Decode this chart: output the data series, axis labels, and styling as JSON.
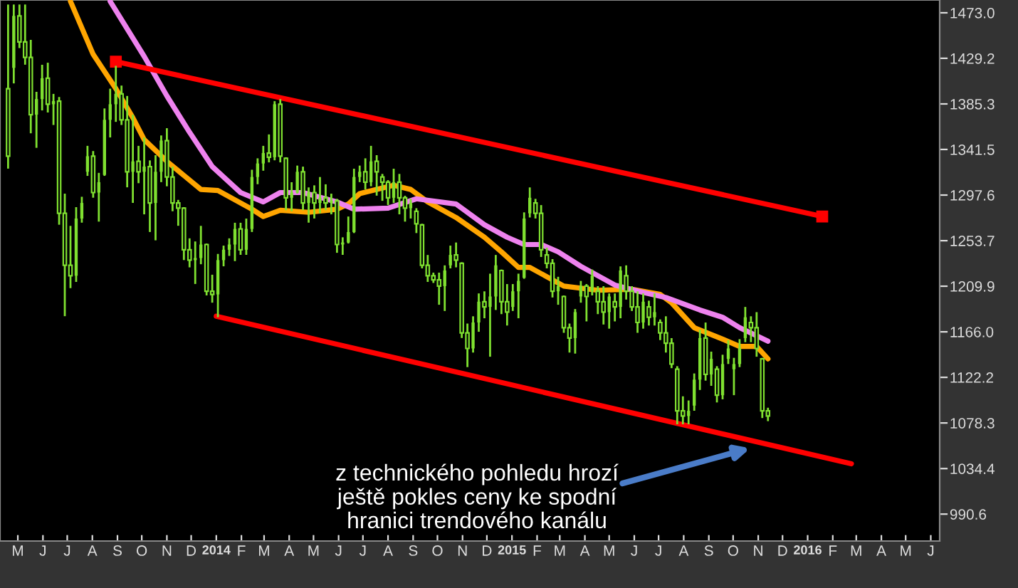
{
  "chart_data": {
    "type": "candlestick",
    "color": "#7fe030",
    "x": [
      "2013-04-19",
      "2013-04-26",
      "2013-05-03",
      "2013-05-10",
      "2013-05-17",
      "2013-05-24",
      "2013-05-31",
      "2013-06-07",
      "2013-06-14",
      "2013-06-21",
      "2013-06-28",
      "2013-07-05",
      "2013-07-12",
      "2013-07-19",
      "2013-07-26",
      "2013-08-02",
      "2013-08-09",
      "2013-08-16",
      "2013-08-23",
      "2013-08-30",
      "2013-09-06",
      "2013-09-13",
      "2013-09-20",
      "2013-09-27",
      "2013-10-04",
      "2013-10-11",
      "2013-10-18",
      "2013-10-25",
      "2013-11-01",
      "2013-11-08",
      "2013-11-15",
      "2013-11-22",
      "2013-11-29",
      "2013-12-06",
      "2013-12-13",
      "2013-12-20",
      "2013-12-27",
      "2014-01-03",
      "2014-01-10",
      "2014-01-17",
      "2014-01-24",
      "2014-01-31",
      "2014-02-07",
      "2014-02-14",
      "2014-02-21",
      "2014-02-28",
      "2014-03-07",
      "2014-03-14",
      "2014-03-21",
      "2014-03-28",
      "2014-04-04",
      "2014-04-11",
      "2014-04-18",
      "2014-04-25",
      "2014-05-02",
      "2014-05-09",
      "2014-05-16",
      "2014-05-23",
      "2014-05-30",
      "2014-06-06",
      "2014-06-13",
      "2014-06-20",
      "2014-06-27",
      "2014-07-04",
      "2014-07-11",
      "2014-07-18",
      "2014-07-25",
      "2014-08-01",
      "2014-08-08",
      "2014-08-15",
      "2014-08-22",
      "2014-08-29",
      "2014-09-05",
      "2014-09-12",
      "2014-09-19",
      "2014-09-26",
      "2014-10-03",
      "2014-10-10",
      "2014-10-17",
      "2014-10-24",
      "2014-10-31",
      "2014-11-07",
      "2014-11-14",
      "2014-11-21",
      "2014-11-28",
      "2014-12-05",
      "2014-12-12",
      "2014-12-19",
      "2014-12-26",
      "2015-01-02",
      "2015-01-09",
      "2015-01-16",
      "2015-01-23",
      "2015-01-30",
      "2015-02-06",
      "2015-02-13",
      "2015-02-20",
      "2015-02-27",
      "2015-03-06",
      "2015-03-13",
      "2015-03-20",
      "2015-03-27",
      "2015-04-03",
      "2015-04-10",
      "2015-04-17",
      "2015-04-24",
      "2015-05-01",
      "2015-05-08",
      "2015-05-15",
      "2015-05-22",
      "2015-05-29",
      "2015-06-05",
      "2015-06-12",
      "2015-06-19",
      "2015-06-26",
      "2015-07-03",
      "2015-07-10",
      "2015-07-17",
      "2015-07-24",
      "2015-07-31",
      "2015-08-07",
      "2015-08-14",
      "2015-08-21",
      "2015-08-28",
      "2015-09-04",
      "2015-09-11",
      "2015-09-18",
      "2015-09-25",
      "2015-10-02",
      "2015-10-09",
      "2015-10-16",
      "2015-10-23",
      "2015-10-30",
      "2015-11-06",
      "2015-11-13"
    ],
    "ohlc": [
      [
        1400,
        1480,
        1324,
        1335
      ],
      [
        1420,
        1480,
        1406,
        1470
      ],
      [
        1470,
        1480,
        1440,
        1445
      ],
      [
        1445,
        1480,
        1424,
        1430
      ],
      [
        1430,
        1446,
        1358,
        1375
      ],
      [
        1375,
        1396,
        1344,
        1390
      ],
      [
        1390,
        1422,
        1380,
        1410
      ],
      [
        1410,
        1424,
        1378,
        1385
      ],
      [
        1385,
        1394,
        1366,
        1388
      ],
      [
        1388,
        1391,
        1270,
        1280
      ],
      [
        1280,
        1298,
        1182,
        1230
      ],
      [
        1230,
        1267,
        1209,
        1220
      ],
      [
        1220,
        1285,
        1215,
        1275
      ],
      [
        1275,
        1295,
        1272,
        1290
      ],
      [
        1320,
        1344,
        1317,
        1335
      ],
      [
        1335,
        1339,
        1296,
        1300
      ],
      [
        1300,
        1318,
        1273,
        1310
      ],
      [
        1317,
        1380,
        1317,
        1370
      ],
      [
        1370,
        1399,
        1354,
        1385
      ],
      [
        1385,
        1421,
        1369,
        1395
      ],
      [
        1395,
        1402,
        1366,
        1370
      ],
      [
        1370,
        1392,
        1306,
        1320
      ],
      [
        1320,
        1374,
        1291,
        1330
      ],
      [
        1330,
        1344,
        1310,
        1320
      ],
      [
        1320,
        1352,
        1280,
        1325
      ],
      [
        1325,
        1330,
        1263,
        1290
      ],
      [
        1290,
        1335,
        1255,
        1320
      ],
      [
        1320,
        1354,
        1311,
        1350
      ],
      [
        1350,
        1361,
        1307,
        1315
      ],
      [
        1315,
        1324,
        1283,
        1290
      ],
      [
        1290,
        1292,
        1269,
        1285
      ],
      [
        1285,
        1285,
        1236,
        1245
      ],
      [
        1245,
        1255,
        1229,
        1235
      ],
      [
        1235,
        1252,
        1213,
        1237
      ],
      [
        1237,
        1267,
        1232,
        1250
      ],
      [
        1250,
        1250,
        1202,
        1205
      ],
      [
        1205,
        1220,
        1195,
        1202
      ],
      [
        1202,
        1240,
        1181,
        1235
      ],
      [
        1235,
        1248,
        1230,
        1245
      ],
      [
        1245,
        1255,
        1240,
        1250
      ],
      [
        1250,
        1270,
        1235,
        1265
      ],
      [
        1265,
        1270,
        1241,
        1245
      ],
      [
        1245,
        1274,
        1241,
        1265
      ],
      [
        1265,
        1321,
        1263,
        1315
      ],
      [
        1315,
        1332,
        1309,
        1328
      ],
      [
        1328,
        1344,
        1322,
        1338
      ],
      [
        1338,
        1355,
        1330,
        1334
      ],
      [
        1334,
        1387,
        1332,
        1385
      ],
      [
        1385,
        1389,
        1330,
        1335
      ],
      [
        1333,
        1333,
        1284,
        1295
      ],
      [
        1295,
        1309,
        1283,
        1300
      ],
      [
        1300,
        1325,
        1300,
        1320
      ],
      [
        1320,
        1324,
        1284,
        1290
      ],
      [
        1290,
        1304,
        1272,
        1300
      ],
      [
        1300,
        1306,
        1276,
        1290
      ],
      [
        1290,
        1314,
        1281,
        1295
      ],
      [
        1295,
        1307,
        1284,
        1290
      ],
      [
        1290,
        1298,
        1280,
        1292
      ],
      [
        1292,
        1293,
        1243,
        1250
      ],
      [
        1250,
        1256,
        1241,
        1252
      ],
      [
        1252,
        1276,
        1252,
        1262
      ],
      [
        1262,
        1322,
        1262,
        1315
      ],
      [
        1315,
        1325,
        1311,
        1320
      ],
      [
        1320,
        1332,
        1304,
        1310
      ],
      [
        1310,
        1344,
        1307,
        1330
      ],
      [
        1330,
        1335,
        1298,
        1320
      ],
      [
        1315,
        1317,
        1293,
        1310
      ],
      [
        1310,
        1311,
        1289,
        1295
      ],
      [
        1295,
        1322,
        1291,
        1310
      ],
      [
        1310,
        1317,
        1280,
        1295
      ],
      [
        1295,
        1296,
        1273,
        1285
      ],
      [
        1285,
        1293,
        1276,
        1290
      ],
      [
        1282,
        1284,
        1262,
        1270
      ],
      [
        1269,
        1269,
        1228,
        1230
      ],
      [
        1230,
        1239,
        1215,
        1220
      ],
      [
        1220,
        1222,
        1214,
        1216
      ],
      [
        1216,
        1222,
        1193,
        1210
      ],
      [
        1210,
        1229,
        1187,
        1225
      ],
      [
        1230,
        1248,
        1228,
        1240
      ],
      [
        1240,
        1251,
        1229,
        1235
      ],
      [
        1232,
        1232,
        1161,
        1165
      ],
      [
        1165,
        1173,
        1133,
        1150
      ],
      [
        1150,
        1180,
        1147,
        1175
      ],
      [
        1175,
        1202,
        1167,
        1195
      ],
      [
        1195,
        1204,
        1180,
        1190
      ],
      [
        1190,
        1221,
        1143,
        1200
      ],
      [
        1200,
        1239,
        1188,
        1230
      ],
      [
        1225,
        1225,
        1184,
        1195
      ],
      [
        1195,
        1211,
        1173,
        1185
      ],
      [
        1190,
        1211,
        1187,
        1205
      ],
      [
        1205,
        1221,
        1180,
        1215
      ],
      [
        1218,
        1280,
        1218,
        1275
      ],
      [
        1280,
        1304,
        1277,
        1295
      ],
      [
        1290,
        1293,
        1276,
        1280
      ],
      [
        1280,
        1287,
        1239,
        1245
      ],
      [
        1240,
        1246,
        1228,
        1232
      ],
      [
        1232,
        1235,
        1200,
        1205
      ],
      [
        1205,
        1218,
        1193,
        1210
      ],
      [
        1200,
        1200,
        1166,
        1170
      ],
      [
        1170,
        1173,
        1147,
        1160
      ],
      [
        1160,
        1187,
        1146,
        1185
      ],
      [
        1200,
        1214,
        1195,
        1210
      ],
      [
        1210,
        1211,
        1177,
        1200
      ],
      [
        1205,
        1225,
        1202,
        1220
      ],
      [
        1205,
        1209,
        1184,
        1195
      ],
      [
        1195,
        1209,
        1174,
        1185
      ],
      [
        1185,
        1202,
        1170,
        1200
      ],
      [
        1195,
        1202,
        1177,
        1190
      ],
      [
        1190,
        1228,
        1180,
        1225
      ],
      [
        1220,
        1229,
        1198,
        1205
      ],
      [
        1205,
        1209,
        1187,
        1190
      ],
      [
        1190,
        1204,
        1166,
        1175
      ],
      [
        1175,
        1202,
        1170,
        1195
      ],
      [
        1190,
        1195,
        1173,
        1180
      ],
      [
        1180,
        1202,
        1173,
        1185
      ],
      [
        1175,
        1177,
        1159,
        1165
      ],
      [
        1165,
        1180,
        1147,
        1155
      ],
      [
        1155,
        1159,
        1132,
        1135
      ],
      [
        1130,
        1132,
        1078,
        1090
      ],
      [
        1090,
        1103,
        1078,
        1085
      ],
      [
        1085,
        1099,
        1078,
        1090
      ],
      [
        1095,
        1125,
        1091,
        1120
      ],
      [
        1120,
        1167,
        1111,
        1160
      ],
      [
        1160,
        1174,
        1120,
        1125
      ],
      [
        1125,
        1146,
        1115,
        1140
      ],
      [
        1130,
        1132,
        1099,
        1105
      ],
      [
        1105,
        1143,
        1102,
        1135
      ],
      [
        1140,
        1157,
        1136,
        1150
      ],
      [
        1130,
        1140,
        1106,
        1135
      ],
      [
        1135,
        1158,
        1133,
        1150
      ],
      [
        1160,
        1189,
        1157,
        1180
      ],
      [
        1175,
        1180,
        1157,
        1170
      ],
      [
        1170,
        1184,
        1143,
        1150
      ],
      [
        1140,
        1140,
        1084,
        1090
      ],
      [
        1090,
        1092,
        1081,
        1085
      ]
    ],
    "series": [
      {
        "type": "line",
        "color": "#ffa500",
        "x": [
          "2013-07-05",
          "2013-08-02",
          "2013-08-30",
          "2013-09-20",
          "2013-10-04",
          "2013-11-01",
          "2013-12-13",
          "2014-01-03",
          "2014-02-14",
          "2014-02-28",
          "2014-03-21",
          "2014-04-25",
          "2014-05-30",
          "2014-06-13",
          "2014-06-27",
          "2014-08-08",
          "2014-08-29",
          "2014-09-19",
          "2014-10-24",
          "2014-11-28",
          "2014-12-19",
          "2015-01-09",
          "2015-01-23",
          "2015-03-06",
          "2015-04-17",
          "2015-05-29",
          "2015-07-03",
          "2015-07-17",
          "2015-08-14",
          "2015-09-18",
          "2015-10-09",
          "2015-10-30",
          "2015-11-13"
        ],
        "values": [
          1484,
          1433,
          1400,
          1372,
          1351,
          1330,
          1303,
          1302,
          1284,
          1277,
          1283,
          1281,
          1284,
          1289,
          1299,
          1307,
          1303,
          1291,
          1276,
          1257,
          1243,
          1228,
          1228,
          1210,
          1206,
          1207,
          1202,
          1194,
          1170,
          1159,
          1152,
          1152,
          1140
        ]
      },
      {
        "type": "line",
        "color": "#ee82ee",
        "x": [
          "2013-08-23",
          "2013-10-04",
          "2013-11-01",
          "2013-11-29",
          "2013-12-27",
          "2014-01-31",
          "2014-02-28",
          "2014-03-21",
          "2014-04-18",
          "2014-05-30",
          "2014-06-20",
          "2014-08-01",
          "2014-09-05",
          "2014-10-24",
          "2014-11-28",
          "2014-12-26",
          "2015-01-16",
          "2015-02-06",
          "2015-02-27",
          "2015-03-27",
          "2015-05-08",
          "2015-06-12",
          "2015-07-10",
          "2015-08-21",
          "2015-09-18",
          "2015-10-09",
          "2015-11-13"
        ],
        "values": [
          1484,
          1431,
          1393,
          1358,
          1325,
          1300,
          1291,
          1300,
          1300,
          1291,
          1284,
          1285,
          1294,
          1289,
          1269,
          1257,
          1250,
          1250,
          1243,
          1229,
          1211,
          1204,
          1199,
          1187,
          1180,
          1170,
          1157
        ]
      },
      {
        "type": "line",
        "color": "#ff0000",
        "marker": "square",
        "x": [
          "2013-08-30",
          "2016-01-19"
        ],
        "values": [
          1426,
          1277
        ]
      },
      {
        "type": "line",
        "color": "#ff0000",
        "x": [
          "2014-01-01",
          "2016-02-24"
        ],
        "values": [
          1181,
          1039
        ]
      }
    ],
    "xlim": [
      "2013-04-09",
      "2016-06-12"
    ],
    "xticks": [
      {
        "value": "2013-05-01",
        "label": "M"
      },
      {
        "value": "2013-06-01",
        "label": "J"
      },
      {
        "value": "2013-07-01",
        "label": "J"
      },
      {
        "value": "2013-08-01",
        "label": "A"
      },
      {
        "value": "2013-09-01",
        "label": "S"
      },
      {
        "value": "2013-10-01",
        "label": "O"
      },
      {
        "value": "2013-11-01",
        "label": "N"
      },
      {
        "value": "2013-12-01",
        "label": "D"
      },
      {
        "value": "2014-01-01",
        "label": "2014"
      },
      {
        "value": "2014-02-01",
        "label": "F"
      },
      {
        "value": "2014-03-01",
        "label": "M"
      },
      {
        "value": "2014-04-01",
        "label": "A"
      },
      {
        "value": "2014-05-01",
        "label": "M"
      },
      {
        "value": "2014-06-01",
        "label": "J"
      },
      {
        "value": "2014-07-01",
        "label": "J"
      },
      {
        "value": "2014-08-01",
        "label": "A"
      },
      {
        "value": "2014-09-01",
        "label": "S"
      },
      {
        "value": "2014-10-01",
        "label": "O"
      },
      {
        "value": "2014-11-01",
        "label": "N"
      },
      {
        "value": "2014-12-01",
        "label": "D"
      },
      {
        "value": "2015-01-01",
        "label": "2015"
      },
      {
        "value": "2015-02-01",
        "label": "F"
      },
      {
        "value": "2015-03-01",
        "label": "M"
      },
      {
        "value": "2015-04-01",
        "label": "A"
      },
      {
        "value": "2015-05-01",
        "label": "M"
      },
      {
        "value": "2015-06-01",
        "label": "J"
      },
      {
        "value": "2015-07-01",
        "label": "J"
      },
      {
        "value": "2015-08-01",
        "label": "A"
      },
      {
        "value": "2015-09-01",
        "label": "S"
      },
      {
        "value": "2015-10-01",
        "label": "O"
      },
      {
        "value": "2015-11-01",
        "label": "N"
      },
      {
        "value": "2015-12-01",
        "label": "D"
      },
      {
        "value": "2016-01-01",
        "label": "2016"
      },
      {
        "value": "2016-02-01",
        "label": "F"
      },
      {
        "value": "2016-03-01",
        "label": "M"
      },
      {
        "value": "2016-04-01",
        "label": "A"
      },
      {
        "value": "2016-05-01",
        "label": "M"
      },
      {
        "value": "2016-06-01",
        "label": "J"
      }
    ],
    "ylim": [
      964.7,
      1485.3
    ],
    "yticks": [
      {
        "value": 1473,
        "label": "1473.0"
      },
      1429.2,
      1385.3,
      1341.5,
      1297.6,
      1253.7,
      1209.9,
      {
        "value": 1166,
        "label": "1166.0"
      },
      1122.2,
      1078.3,
      1034.4,
      990.6
    ],
    "annotations": [
      {
        "text": "z technického pohledu hrozí\nještě pokles ceny ke spodní\nhranici trendového kanálu",
        "x": "2015-10-22",
        "y": 1054
      }
    ]
  }
}
